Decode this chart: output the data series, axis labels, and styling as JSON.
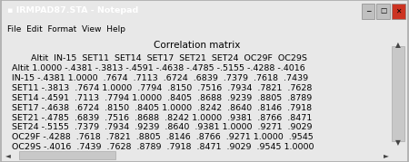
{
  "title_bar": "IRMPAD87.STA - Notepad",
  "menu_items": "File  Edit  Format  View  Help",
  "heading": "        Correlation matrix",
  "lines": [
    "       Altit  IN-15  SET11  SET14  SET17  SET21  SET24  OC29F  OC29S",
    "Altit 1.0000 -.4381 -.3813 -.4591 -.4638 -.4785 -.5155 -.4288 -.4016",
    "IN-15 -.4381 1.0000  .7674  .7113  .6724  .6839  .7379  .7618  .7439",
    "SET11 -.3813  .7674 1.0000  .7794  .8150  .7516  .7934  .7821  .7628",
    "SET14 -.4591  .7113  .7794 1.0000  .8405  .8688  .9239  .8805  .8789",
    "SET17 -.4638  .6724  .8150  .8405 1.0000  .8242  .8640  .8146  .7918",
    "SET21 -.4785  .6839  .7516  .8688  .8242 1.0000  .9381  .8766  .8471",
    "SET24 -.5155  .7379  .7934  .9239  .8640  .9381 1.0000  .9271  .9029",
    "OC29F -.4288  .7618  .7821  .8805  .8146  .8766  .9271 1.0000  .9545",
    "OC29S -.4016  .7439  .7628  .8789  .7918  .8471  .9029  .9545 1.0000"
  ],
  "title_bar_bg": "#6e95c8",
  "title_bar_text": "#ffffff",
  "window_bg": "#e8e8e8",
  "content_bg": "#ffffff",
  "border_color": "#888888",
  "scrollbar_bg": "#d0d0d0",
  "text_color": "#000000",
  "font_family": "Courier New",
  "font_size": 6.8,
  "heading_font_size": 7.5,
  "menu_font_size": 6.5,
  "title_font_size": 6.8
}
